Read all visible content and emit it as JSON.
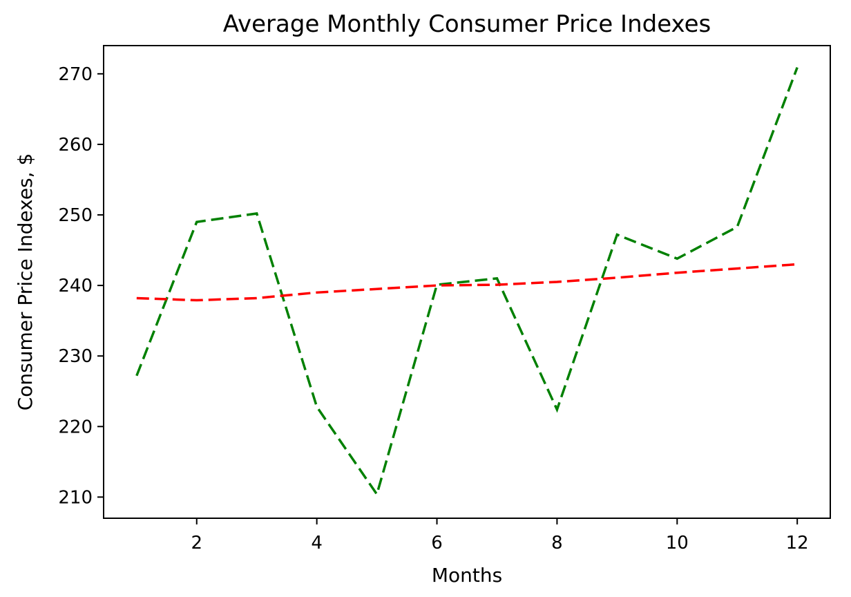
{
  "chart_data": {
    "type": "line",
    "title": "Average Monthly Consumer Price Indexes",
    "xlabel": "Months",
    "ylabel": "Consumer Price Indexes, $",
    "xlim": [
      0.45,
      12.55
    ],
    "ylim": [
      207,
      274
    ],
    "xticks": [
      2,
      4,
      6,
      8,
      10,
      12
    ],
    "yticks": [
      210,
      220,
      230,
      240,
      250,
      260,
      270
    ],
    "grid": false,
    "legend": "none",
    "x": [
      1,
      2,
      3,
      4,
      5,
      6,
      7,
      8,
      9,
      10,
      11,
      12
    ],
    "series": [
      {
        "color": "#008000",
        "style": "dashed",
        "values": [
          227.2,
          249.0,
          250.2,
          222.8,
          210.4,
          240.1,
          241.0,
          222.4,
          247.2,
          243.8,
          248.3,
          270.9
        ]
      },
      {
        "color": "#ff0000",
        "style": "dashed",
        "values": [
          238.2,
          237.9,
          238.2,
          239.0,
          239.5,
          240.0,
          240.1,
          240.5,
          241.1,
          241.8,
          242.4,
          243.0
        ]
      }
    ]
  }
}
